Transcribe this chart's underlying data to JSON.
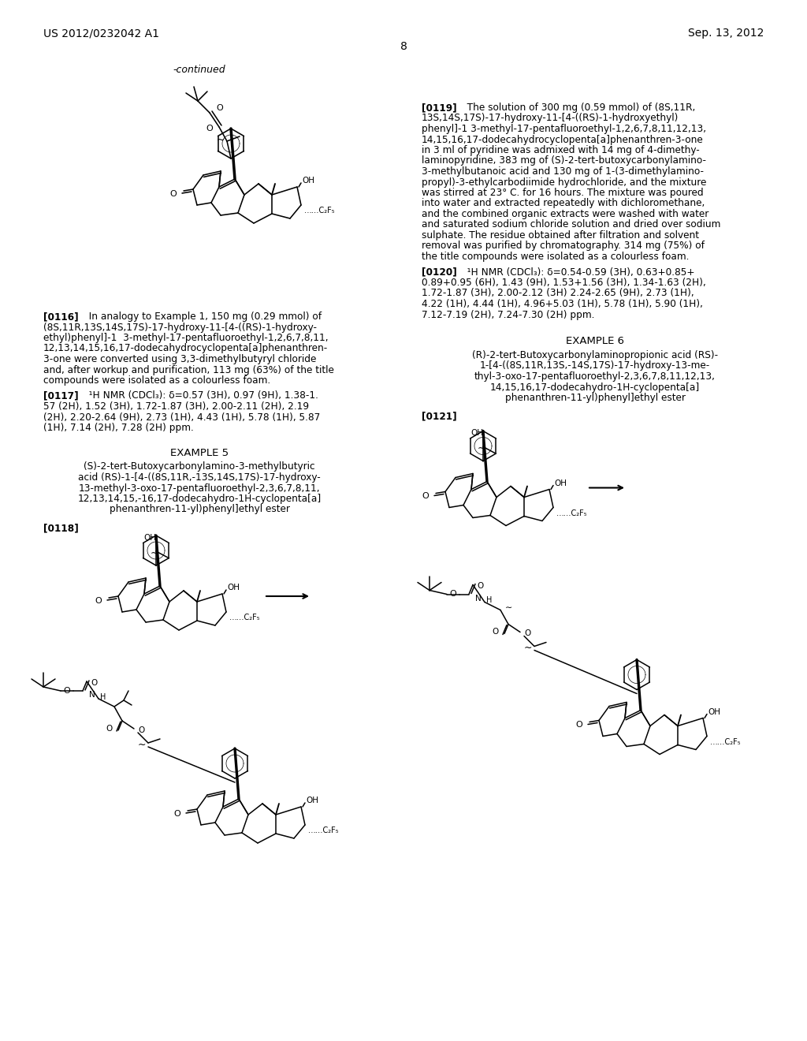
{
  "bg": "#ffffff",
  "header_left": "US 2012/0232042 A1",
  "header_right": "Sep. 13, 2012",
  "page_num": "8",
  "continued": "-continued",
  "p116_lines": [
    "[0116]",
    "   In analogy to Example 1, 150 mg (0.29 mmol) of",
    "(8S,11R,13S,14S,17S)-17-hydroxy-11-[4-((RS)-1-hydroxy-",
    "ethyl)phenyl]-1  3-methyl-17-pentafluoroethyl-1,2,6,7,8,11,",
    "12,13,14,15,16,17-dodecahydrocyclopenta[a]phenanthren-",
    "3-one were converted using 3,3-dimethylbutyryl chloride",
    "and, after workup and purification, 113 mg (63%) of the title",
    "compounds were isolated as a colourless foam."
  ],
  "p117_lines": [
    "[0117]",
    "   ¹H NMR (CDCl₃): δ=0.57 (3H), 0.97 (9H), 1.38-1.",
    "57 (2H), 1.52 (3H), 1.72-1.87 (3H), 2.00-2.11 (2H), 2.19",
    "(2H), 2.20-2.64 (9H), 2.73 (1H), 4.43 (1H), 5.78 (1H), 5.87",
    "(1H), 7.14 (2H), 7.28 (2H) ppm."
  ],
  "ex5_title": "EXAMPLE 5",
  "ex5_sub": [
    "(S)-2-tert-Butoxycarbonylamino-3-methylbutyric",
    "acid (RS)-1-[4-((8S,11R,-13S,14S,17S)-17-hydroxy-",
    "13-methyl-3-oxo-17-pentafluoroethyl-2,3,6,7,8,11,",
    "12,13,14,15,-16,17-dodecahydro-1H-cyclopenta[a]",
    "phenanthren-11-yl)phenyl]ethyl ester"
  ],
  "p118": "[0118]",
  "p119_lines": [
    "[0119]",
    "   The solution of 300 mg (0.59 mmol) of (8S,11R,",
    "13S,14S,17S)-17-hydroxy-11-[4-((RS)-1-hydroxyethyl)",
    "phenyl]-1 3-methyl-17-pentafluoroethyl-1,2,6,7,8,11,12,13,",
    "14,15,16,17-dodecahydrocyclopenta[a]phenanthren-3-one",
    "in 3 ml of pyridine was admixed with 14 mg of 4-dimethy-",
    "laminopyridine, 383 mg of (S)-2-tert-butoxycarbonylamino-",
    "3-methylbutanoic acid and 130 mg of 1-(3-dimethylamino-",
    "propyl)-3-ethylcarbodiimide hydrochloride, and the mixture",
    "was stirred at 23° C. for 16 hours. The mixture was poured",
    "into water and extracted repeatedly with dichloromethane,",
    "and the combined organic extracts were washed with water",
    "and saturated sodium chloride solution and dried over sodium",
    "sulphate. The residue obtained after filtration and solvent",
    "removal was purified by chromatography. 314 mg (75%) of",
    "the title compounds were isolated as a colourless foam."
  ],
  "p120_lines": [
    "[0120]",
    "   ¹H NMR (CDCl₃): δ=0.54-0.59 (3H), 0.63+0.85+",
    "0.89+0.95 (6H), 1.43 (9H), 1.53+1.56 (3H), 1.34-1.63 (2H),",
    "1.72-1.87 (3H), 2.00-2.12 (3H) 2.24-2.65 (9H), 2.73 (1H),",
    "4.22 (1H), 4.44 (1H), 4.96+5.03 (1H), 5.78 (1H), 5.90 (1H),",
    "7.12-7.19 (2H), 7.24-7.30 (2H) ppm."
  ],
  "ex6_title": "EXAMPLE 6",
  "ex6_sub": [
    "(R)-2-tert-Butoxycarbonylaminopropionic acid (RS)-",
    "1-[4-((8S,11R,13S,-14S,17S)-17-hydroxy-13-me-",
    "thyl-3-oxo-17-pentafluoroethyl-2,3,6,7,8,11,12,13,",
    "14,15,16,17-dodecahydro-1H-cyclopenta[a]",
    "phenanthren-11-yl)phenyl]ethyl ester"
  ],
  "p121": "[0121]"
}
